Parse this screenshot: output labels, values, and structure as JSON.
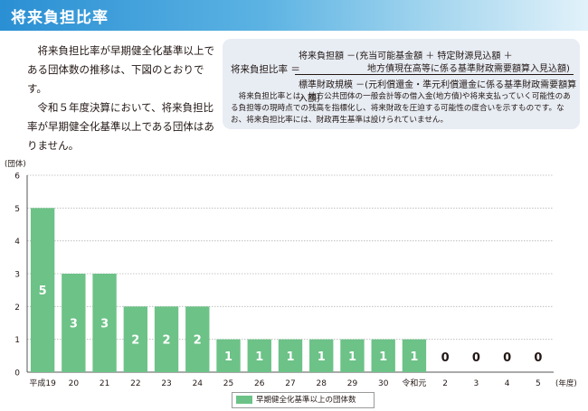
{
  "page": {
    "title": "将来負担比率",
    "intro": [
      "将来負担比率が早期健全化基準以上である団体数の推移は、下図のとおりです。",
      "令和５年度決算において、将来負担比率が早期健全化基準以上である団体はありません。"
    ]
  },
  "formula": {
    "lhs": "将来負担比率 ＝",
    "numerator_line1": "将来負担額 －(充当可能基金額 ＋ 特定財源見込額 ＋",
    "numerator_line2": "地方債現在高等に係る基準財政需要額算入見込額)",
    "denominator": "標準財政規模 －(元利償還金・準元利償還金に係る基準財政需要額算入額)",
    "note": "将来負担比率とは、地方公共団体の一般会計等の借入金(地方債)や将来支払っていく可能性のある負担等の現時点での残高を指標化し、将来財政を圧迫する可能性の度合いを示すものです。なお、将来負担比率には、財政再生基準は設けられていません。"
  },
  "chart_data": {
    "type": "bar",
    "y_unit_label": "(団体)",
    "x_unit_label": "(年度)",
    "categories": [
      "平成19",
      "20",
      "21",
      "22",
      "23",
      "24",
      "25",
      "26",
      "27",
      "28",
      "29",
      "30",
      "令和元",
      "2",
      "3",
      "4",
      "5"
    ],
    "series": [
      {
        "name": "早期健全化基準以上の団体数",
        "values": [
          5,
          3,
          3,
          2,
          2,
          2,
          1,
          1,
          1,
          1,
          1,
          1,
          1,
          0,
          0,
          0,
          0
        ]
      }
    ],
    "ylim": [
      0,
      6
    ],
    "yticks": [
      0,
      1,
      2,
      3,
      4,
      5,
      6
    ],
    "grid": "horizontal dotted",
    "legend": "bottom-center",
    "bar_color": "#6cc287"
  }
}
